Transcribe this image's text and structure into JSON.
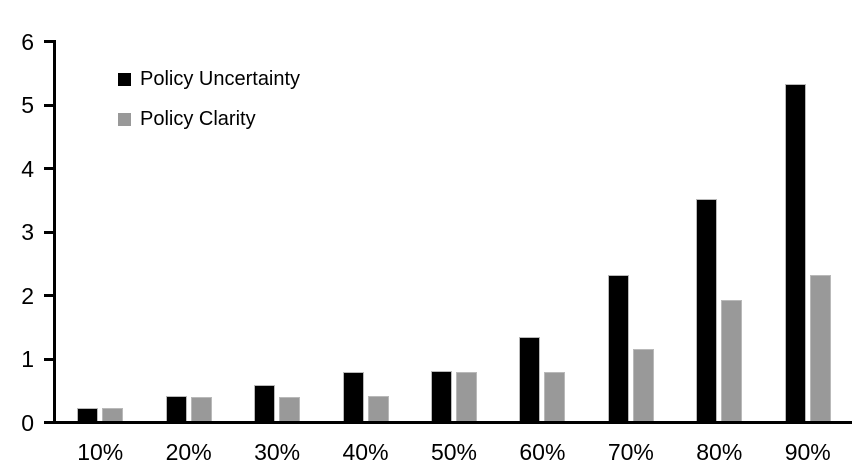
{
  "chart_data": {
    "type": "bar",
    "title": "",
    "xlabel": "",
    "ylabel": "",
    "categories": [
      "10%",
      "20%",
      "30%",
      "40%",
      "50%",
      "60%",
      "70%",
      "80%",
      "90%"
    ],
    "series": [
      {
        "name": "Policy Uncertainty",
        "color": "#000000",
        "values": [
          0.2,
          0.4,
          0.57,
          0.77,
          0.78,
          1.33,
          2.3,
          3.5,
          5.3
        ]
      },
      {
        "name": "Policy Clarity",
        "color": "#999999",
        "values": [
          0.2,
          0.38,
          0.38,
          0.4,
          0.77,
          0.77,
          1.13,
          1.9,
          2.3
        ]
      }
    ],
    "ylim": [
      0,
      6
    ],
    "ytick_step": 1,
    "y_tick_labels": [
      "0",
      "1",
      "2",
      "3",
      "4",
      "5",
      "6"
    ],
    "grid": false,
    "legend_position": "top-left-inside",
    "background_color": "#ffffff"
  }
}
